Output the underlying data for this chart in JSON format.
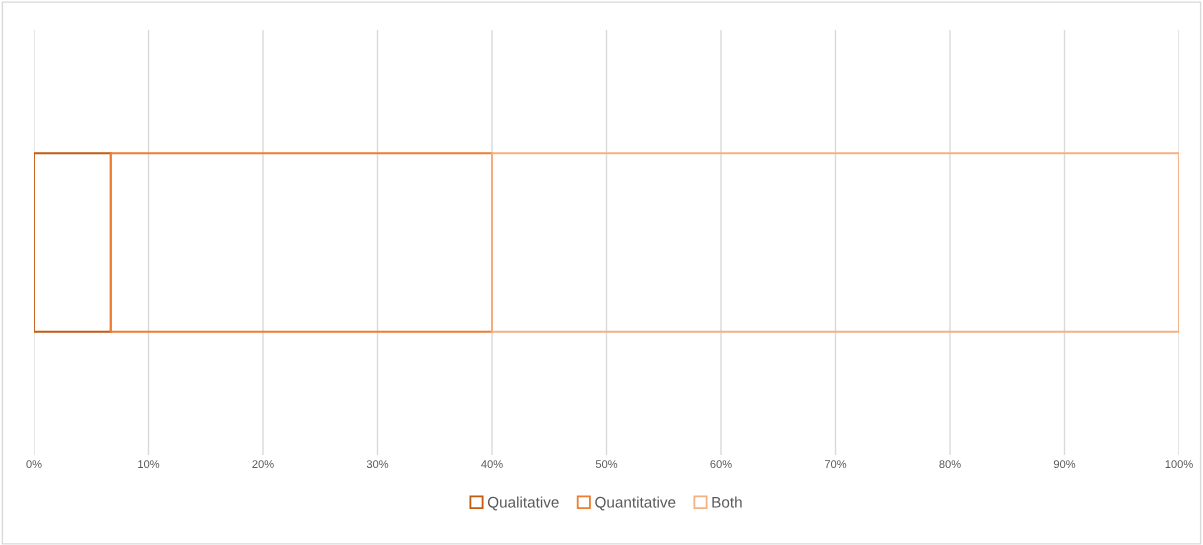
{
  "chart_data": {
    "type": "bar",
    "orientation": "horizontal",
    "stacked": true,
    "categories": [
      null
    ],
    "series": [
      {
        "name": "Qualitative",
        "color": "#c55a11",
        "values": [
          6.7
        ]
      },
      {
        "name": "Quantitative",
        "color": "#ed7d31",
        "values": [
          33.3
        ]
      },
      {
        "name": "Both",
        "color": "#f4b183",
        "values": [
          60
        ]
      }
    ],
    "xlim": [
      0,
      100
    ],
    "xticks": [
      {
        "value": 0,
        "label": "0%"
      },
      {
        "value": 10,
        "label": "10%"
      },
      {
        "value": 20,
        "label": "20%"
      },
      {
        "value": 30,
        "label": "30%"
      },
      {
        "value": 40,
        "label": "40%"
      },
      {
        "value": 50,
        "label": "50%"
      },
      {
        "value": 60,
        "label": "60%"
      },
      {
        "value": 70,
        "label": "70%"
      },
      {
        "value": 80,
        "label": "80%"
      },
      {
        "value": 90,
        "label": "90%"
      },
      {
        "value": 100,
        "label": "100%"
      }
    ],
    "grid": "x",
    "legend": "bottom"
  }
}
